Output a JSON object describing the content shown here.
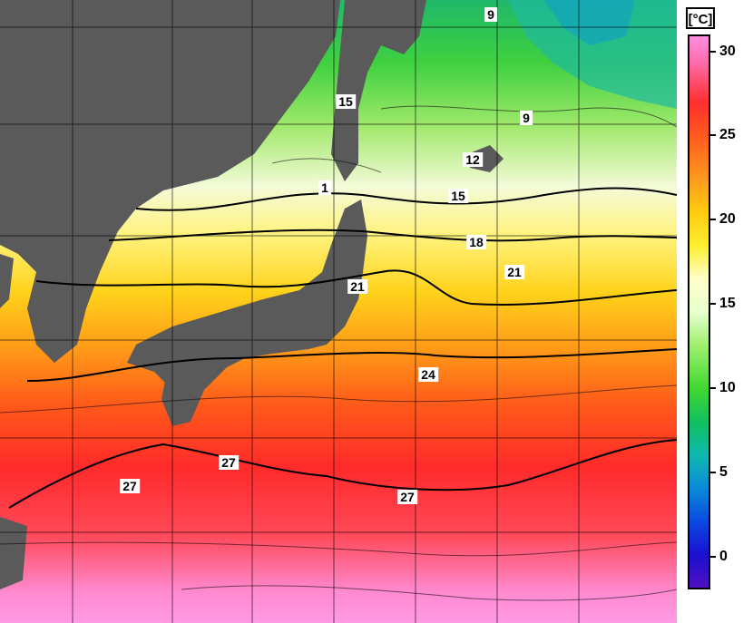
{
  "map": {
    "contour_labels": [
      "9",
      "9",
      "15",
      "12",
      "1",
      "15",
      "18",
      "21",
      "21",
      "24",
      "27",
      "27",
      "27"
    ]
  },
  "colorbar": {
    "unit": "[°C]",
    "ticks": [
      "30",
      "25",
      "20",
      "15",
      "10",
      "5",
      "0"
    ]
  }
}
